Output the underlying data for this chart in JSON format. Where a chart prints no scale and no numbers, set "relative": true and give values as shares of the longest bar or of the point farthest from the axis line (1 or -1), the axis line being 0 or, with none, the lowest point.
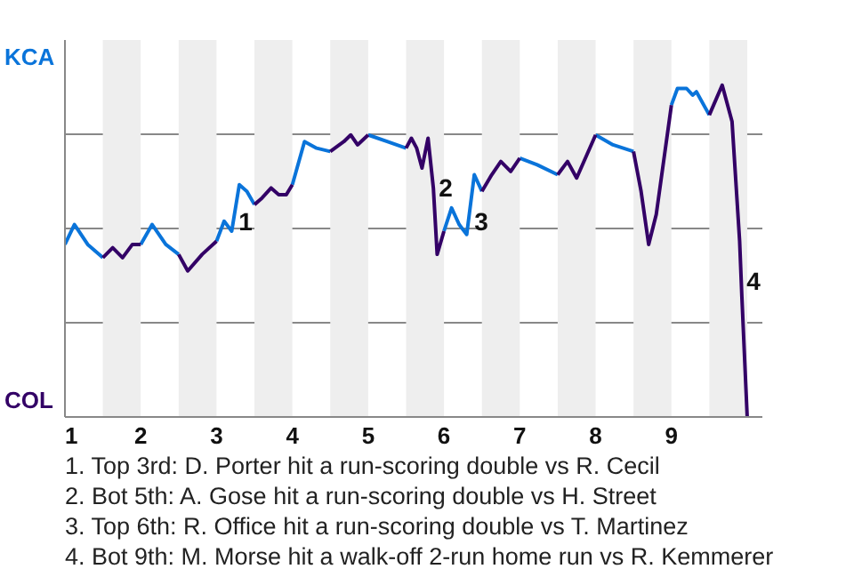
{
  "chart_data": {
    "type": "line",
    "relative": true,
    "x": [
      1,
      1.125,
      1.3,
      1.5,
      1.63,
      1.76,
      1.89,
      2,
      2.15,
      2.33,
      2.5,
      2.62,
      2.81,
      3,
      3.1,
      3.2,
      3.3,
      3.4,
      3.5,
      3.6,
      3.72,
      3.82,
      3.92,
      4,
      4.16,
      4.32,
      4.5,
      4.68,
      4.77,
      4.86,
      5,
      5.25,
      5.5,
      5.57,
      5.64,
      5.71,
      5.79,
      5.86,
      5.91,
      6,
      6.1,
      6.2,
      6.3,
      6.4,
      6.5,
      6.63,
      6.75,
      6.88,
      7,
      7.23,
      7.5,
      7.63,
      7.75,
      8,
      8.23,
      8.5,
      8.6,
      8.7,
      8.8,
      9,
      9.08,
      9.2,
      9.28,
      9.33,
      9.5,
      9.67,
      9.8,
      9.9,
      9.93,
      10
    ],
    "series": [
      {
        "color": "#0a74da",
        "values": [
          0.52,
          0.58,
          0.52,
          0.48,
          null,
          null,
          null,
          0.52,
          0.58,
          0.52,
          0.49,
          null,
          null,
          0.53,
          0.59,
          0.56,
          0.7,
          0.68,
          0.64,
          null,
          null,
          null,
          null,
          0.7,
          0.83,
          0.81,
          0.8,
          null,
          null,
          null,
          0.85,
          0.83,
          0.81,
          null,
          null,
          null,
          null,
          null,
          null,
          0.56,
          0.63,
          0.58,
          0.55,
          0.73,
          0.68,
          null,
          null,
          null,
          0.78,
          0.76,
          0.73,
          null,
          null,
          0.85,
          0.82,
          0.8,
          null,
          null,
          null,
          0.94,
          0.99,
          0.99,
          0.97,
          0.98,
          0.91,
          null,
          null,
          null,
          null,
          null
        ]
      },
      {
        "color": "#330066",
        "values": [
          null,
          null,
          null,
          0.48,
          0.51,
          0.48,
          0.52,
          0.52,
          null,
          null,
          0.49,
          0.44,
          0.49,
          0.53,
          null,
          null,
          null,
          null,
          0.64,
          0.66,
          0.69,
          0.67,
          0.67,
          0.7,
          null,
          null,
          0.8,
          0.83,
          0.85,
          0.82,
          0.85,
          null,
          0.81,
          0.84,
          0.81,
          0.75,
          0.84,
          0.69,
          0.49,
          0.56,
          null,
          null,
          null,
          null,
          0.68,
          0.73,
          0.77,
          0.74,
          0.78,
          null,
          0.73,
          0.77,
          0.72,
          0.85,
          null,
          0.8,
          0.68,
          0.52,
          0.61,
          0.94,
          null,
          null,
          null,
          null,
          0.91,
          1,
          0.89,
          0.53,
          0.36,
          0
        ]
      }
    ],
    "xlim": [
      1,
      10.2
    ],
    "xticks": [
      1,
      2,
      3,
      4,
      5,
      6,
      7,
      8,
      9
    ],
    "grid": "y",
    "marker": "none",
    "line_style": "solid",
    "bands": [
      {
        "axis": "x",
        "from": 1.5,
        "to": 2,
        "color": "#eeeeee"
      },
      {
        "axis": "x",
        "from": 2.5,
        "to": 3,
        "color": "#eeeeee"
      },
      {
        "axis": "x",
        "from": 3.5,
        "to": 4,
        "color": "#eeeeee"
      },
      {
        "axis": "x",
        "from": 4.5,
        "to": 5,
        "color": "#eeeeee"
      },
      {
        "axis": "x",
        "from": 5.5,
        "to": 6,
        "color": "#eeeeee"
      },
      {
        "axis": "x",
        "from": 6.5,
        "to": 7,
        "color": "#eeeeee"
      },
      {
        "axis": "x",
        "from": 7.5,
        "to": 8,
        "color": "#eeeeee"
      },
      {
        "axis": "x",
        "from": 8.5,
        "to": 9,
        "color": "#eeeeee"
      },
      {
        "axis": "x",
        "from": 9.5,
        "to": 10,
        "color": "#eeeeee"
      }
    ],
    "annotations": [
      {
        "text": "1",
        "x": 3.22,
        "y": 0.59
      },
      {
        "text": "2",
        "x": 5.86,
        "y": 0.69
      },
      {
        "text": "3",
        "x": 6.33,
        "y": 0.59
      },
      {
        "text": "4",
        "x": 9.92,
        "y": 0.41
      },
      "KCA",
      "COL",
      "1. Top 3rd: D. Porter hit a run-scoring double vs R. Cecil",
      "2. Bot 5th: A. Gose hit a run-scoring double vs H. Street",
      "3. Top 6th: R. Office hit a run-scoring double vs T. Martinez",
      "4. Bot 9th: M. Morse hit a walk-off 2-run home run vs R. Kemmerer"
    ]
  }
}
